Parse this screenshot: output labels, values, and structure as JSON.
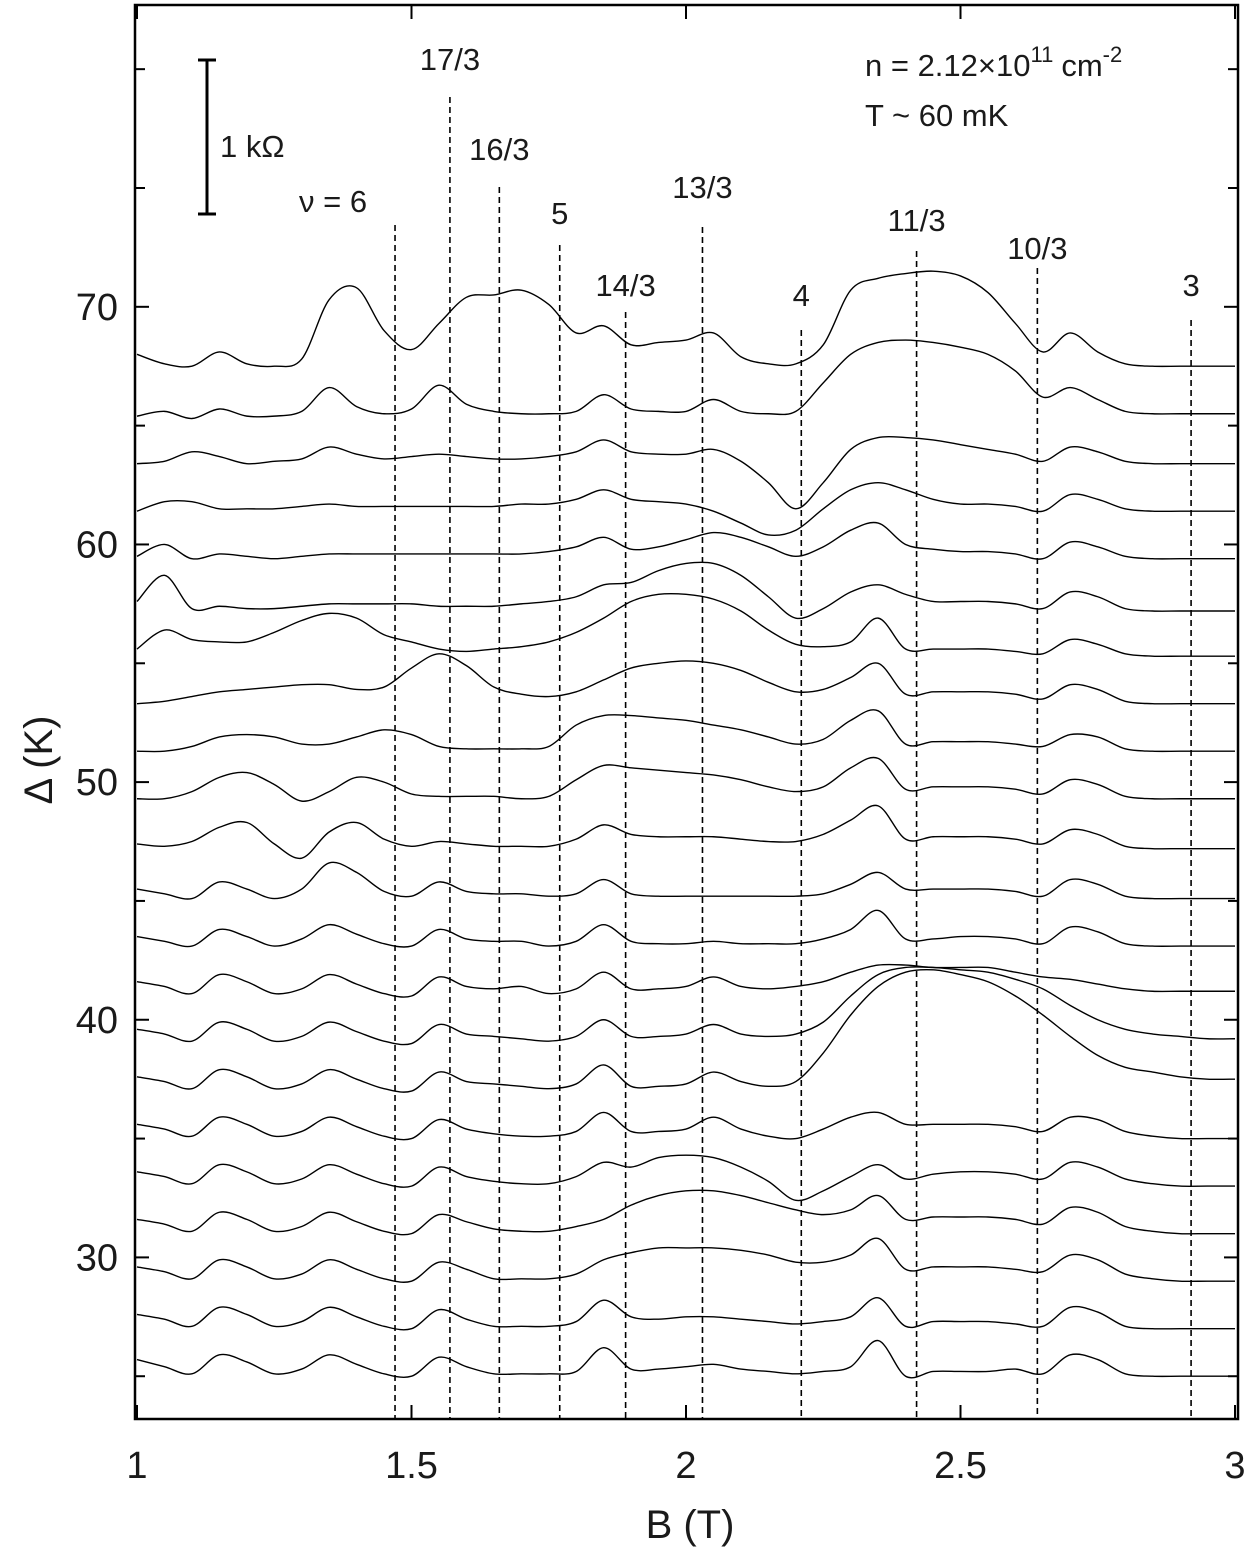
{
  "chart_data": {
    "type": "line",
    "x_label": "B (T)",
    "y_label": "Δ (K)",
    "xlim": [
      1,
      3
    ],
    "ylim": [
      23.2,
      82.7
    ],
    "xticks": [
      1,
      1.5,
      2,
      2.5,
      3
    ],
    "yticks": [
      30,
      40,
      50,
      60,
      70
    ],
    "yminor": [
      25,
      35,
      45,
      55,
      65,
      75,
      80
    ],
    "grid": false,
    "color": "#000000",
    "annotations": {
      "density": {
        "text": "n = 2.12×10",
        "exponent": "11",
        "unit": "cm",
        "unit_exponent": "-2"
      },
      "temperature": "T ~ 60 mK",
      "scale_bar": "1 kΩ"
    },
    "markers": [
      {
        "label": "ν = 6",
        "x": 1.47
      },
      {
        "label": "17/3",
        "x": 1.57
      },
      {
        "label": "16/3",
        "x": 1.66
      },
      {
        "label": "5",
        "x": 1.77
      },
      {
        "label": "14/3",
        "x": 1.89
      },
      {
        "label": "13/3",
        "x": 2.03
      },
      {
        "label": "4",
        "x": 2.21
      },
      {
        "label": "11/3",
        "x": 2.42
      },
      {
        "label": "10/3",
        "x": 2.64
      },
      {
        "label": "3",
        "x": 2.92
      }
    ],
    "x": [
      1.0,
      1.05,
      1.1,
      1.15,
      1.2,
      1.25,
      1.3,
      1.35,
      1.4,
      1.45,
      1.5,
      1.55,
      1.6,
      1.65,
      1.7,
      1.75,
      1.8,
      1.85,
      1.9,
      1.95,
      2.0,
      2.05,
      2.1,
      2.15,
      2.2,
      2.25,
      2.3,
      2.35,
      2.4,
      2.45,
      2.5,
      2.55,
      2.6,
      2.65,
      2.7,
      2.75,
      2.8,
      2.85,
      2.9,
      2.95,
      3.0
    ],
    "series": [
      {
        "values": [
          25.7,
          25.4,
          25.1,
          25.9,
          25.6,
          25.1,
          25.3,
          25.9,
          25.5,
          25.1,
          25,
          25.8,
          25.4,
          25.1,
          25.1,
          25.1,
          25.2,
          26.2,
          25.3,
          25.3,
          25.4,
          25.5,
          25.3,
          25.2,
          25.1,
          25.2,
          25.4,
          26.5,
          25,
          25.2,
          25.2,
          25.2,
          25.3,
          25.1,
          25.9,
          25.7,
          25.1,
          25,
          25,
          25,
          25
        ]
      },
      {
        "values": [
          27.6,
          27.4,
          27.1,
          27.9,
          27.6,
          27.1,
          27.3,
          27.9,
          27.5,
          27.1,
          27,
          27.8,
          27.4,
          27.1,
          27.1,
          27.1,
          27.3,
          28.2,
          27.5,
          27.4,
          27.5,
          27.5,
          27.4,
          27.3,
          27.2,
          27.3,
          27.5,
          28.3,
          27.1,
          27.3,
          27.3,
          27.3,
          27.2,
          27.1,
          27.9,
          27.7,
          27.1,
          27,
          27,
          27,
          27
        ]
      },
      {
        "values": [
          29.6,
          29.4,
          29.1,
          29.9,
          29.6,
          29.1,
          29.3,
          29.9,
          29.5,
          29.1,
          29,
          29.8,
          29.5,
          29.1,
          29.1,
          29.1,
          29.3,
          29.9,
          30.2,
          30.4,
          30.4,
          30.4,
          30.3,
          30.1,
          29.8,
          29.8,
          30.1,
          30.8,
          29.5,
          29.6,
          29.6,
          29.6,
          29.5,
          29.4,
          30.1,
          29.9,
          29.3,
          29.1,
          29,
          29,
          29
        ]
      },
      {
        "values": [
          31.6,
          31.4,
          31.1,
          31.9,
          31.6,
          31.1,
          31.3,
          31.9,
          31.5,
          31.1,
          31,
          31.8,
          31.5,
          31.2,
          31.1,
          31.1,
          31.3,
          31.6,
          32.2,
          32.6,
          32.8,
          32.8,
          32.6,
          32.3,
          32.0,
          31.8,
          32.0,
          32.6,
          31.6,
          31.7,
          31.7,
          31.7,
          31.6,
          31.4,
          32.1,
          31.9,
          31.3,
          31.1,
          31,
          31,
          31
        ]
      },
      {
        "values": [
          33.6,
          33.4,
          33.1,
          33.9,
          33.6,
          33.1,
          33.3,
          33.9,
          33.5,
          33.1,
          33,
          33.8,
          33.4,
          33.2,
          33.1,
          33.1,
          33.4,
          34.0,
          33.8,
          34.2,
          34.3,
          34.2,
          33.8,
          33.2,
          32.4,
          32.8,
          33.4,
          33.9,
          33.3,
          33.5,
          33.6,
          33.6,
          33.5,
          33.3,
          34.0,
          33.8,
          33.3,
          33.1,
          33,
          33,
          33
        ]
      },
      {
        "values": [
          35.6,
          35.4,
          35.1,
          35.9,
          35.6,
          35.1,
          35.3,
          35.9,
          35.5,
          35.1,
          35,
          35.8,
          35.4,
          35.2,
          35.1,
          35.1,
          35.3,
          36.1,
          35.3,
          35.3,
          35.4,
          35.9,
          35.4,
          35.1,
          35.0,
          35.4,
          35.9,
          36.1,
          35.6,
          35.6,
          35.6,
          35.6,
          35.5,
          35.3,
          35.9,
          35.8,
          35.3,
          35.1,
          35,
          35,
          35
        ]
      },
      {
        "values": [
          37.6,
          37.4,
          37.1,
          37.9,
          37.6,
          37.1,
          37.3,
          37.9,
          37.5,
          37.1,
          37,
          37.8,
          37.4,
          37.3,
          37.2,
          37.1,
          37.3,
          38.1,
          37.2,
          37.2,
          37.3,
          37.8,
          37.4,
          37.2,
          37.4,
          38.6,
          40.2,
          41.4,
          42.0,
          42.1,
          41.9,
          41.6,
          41.0,
          40.2,
          39.3,
          38.5,
          38.0,
          37.8,
          37.6,
          37.5,
          37.5
        ]
      },
      {
        "values": [
          39.6,
          39.4,
          39.1,
          39.9,
          39.6,
          39.1,
          39.3,
          39.9,
          39.5,
          39.1,
          39,
          39.8,
          39.4,
          39.3,
          39.2,
          39.1,
          39.3,
          40.0,
          39.3,
          39.3,
          39.4,
          39.8,
          39.4,
          39.3,
          39.4,
          39.9,
          41.0,
          41.9,
          42.2,
          42.2,
          42.1,
          42.0,
          41.7,
          41.3,
          40.6,
          40.0,
          39.6,
          39.4,
          39.3,
          39.2,
          39.2
        ]
      },
      {
        "values": [
          41.6,
          41.4,
          41.1,
          41.9,
          41.6,
          41.1,
          41.3,
          41.9,
          41.5,
          41.1,
          41,
          41.8,
          41.4,
          41.3,
          41.4,
          41.1,
          41.3,
          42.0,
          41.3,
          41.3,
          41.4,
          41.8,
          41.4,
          41.3,
          41.4,
          41.6,
          42.0,
          42.3,
          42.3,
          42.2,
          42.2,
          42.2,
          42.0,
          41.8,
          41.7,
          41.5,
          41.3,
          41.2,
          41.2,
          41.2,
          41.2
        ]
      },
      {
        "values": [
          43.5,
          43.3,
          43.1,
          43.8,
          43.5,
          43.1,
          43.4,
          44.0,
          43.6,
          43.2,
          43.1,
          43.8,
          43.4,
          43.3,
          43.3,
          43.1,
          43.3,
          44.0,
          43.3,
          43.2,
          43.2,
          43.3,
          43.2,
          43.2,
          43.2,
          43.4,
          43.8,
          44.6,
          43.4,
          43.4,
          43.5,
          43.5,
          43.4,
          43.2,
          43.9,
          43.7,
          43.2,
          43.1,
          43.1,
          43.1,
          43.1
        ]
      },
      {
        "values": [
          45.5,
          45.3,
          45.1,
          45.8,
          45.5,
          45.1,
          45.5,
          46.6,
          46.2,
          45.4,
          45.2,
          45.8,
          45.4,
          45.3,
          45.3,
          45.2,
          45.3,
          45.9,
          45.3,
          45.2,
          45.2,
          45.2,
          45.2,
          45.2,
          45.2,
          45.3,
          45.7,
          46.2,
          45.5,
          45.5,
          45.5,
          45.5,
          45.4,
          45.2,
          45.9,
          45.7,
          45.2,
          45.1,
          45.1,
          45.1,
          45.1
        ]
      },
      {
        "values": [
          47.4,
          47.3,
          47.5,
          48.1,
          48.3,
          47.4,
          46.8,
          47.9,
          48.3,
          47.6,
          47.3,
          47.5,
          47.4,
          47.3,
          47.3,
          47.3,
          47.6,
          48.2,
          47.8,
          47.7,
          47.7,
          47.7,
          47.6,
          47.5,
          47.5,
          47.8,
          48.4,
          49.0,
          47.6,
          47.7,
          47.7,
          47.7,
          47.6,
          47.4,
          48.0,
          47.8,
          47.3,
          47.2,
          47.2,
          47.2,
          47.2
        ]
      },
      {
        "values": [
          49.3,
          49.3,
          49.6,
          50.2,
          50.4,
          49.9,
          49.2,
          49.6,
          50.2,
          50.0,
          49.5,
          49.4,
          49.4,
          49.4,
          49.3,
          49.4,
          50.1,
          50.7,
          50.6,
          50.5,
          50.4,
          50.3,
          50.1,
          49.8,
          49.6,
          49.8,
          50.6,
          51.0,
          49.7,
          49.8,
          49.8,
          49.8,
          49.7,
          49.5,
          50.1,
          49.9,
          49.4,
          49.3,
          49.3,
          49.3,
          49.3
        ]
      },
      {
        "values": [
          51.3,
          51.3,
          51.5,
          51.9,
          52.0,
          51.9,
          51.6,
          51.6,
          51.9,
          52.2,
          52.0,
          51.5,
          51.4,
          51.4,
          51.4,
          51.5,
          52.4,
          52.8,
          52.8,
          52.7,
          52.6,
          52.4,
          52.2,
          51.9,
          51.6,
          51.8,
          52.6,
          53.0,
          51.6,
          51.7,
          51.7,
          51.7,
          51.6,
          51.5,
          52.0,
          51.9,
          51.4,
          51.3,
          51.3,
          51.3,
          51.3
        ]
      },
      {
        "values": [
          53.3,
          53.4,
          53.6,
          53.8,
          53.9,
          54.0,
          54.1,
          54.1,
          53.9,
          54.0,
          54.8,
          55.4,
          54.9,
          54.0,
          53.7,
          53.6,
          53.8,
          54.3,
          54.8,
          55.0,
          55.1,
          55.0,
          54.7,
          54.2,
          53.8,
          53.9,
          54.4,
          55.0,
          53.7,
          53.8,
          53.8,
          53.8,
          53.7,
          53.5,
          54.1,
          53.9,
          53.4,
          53.3,
          53.3,
          53.3,
          53.3
        ]
      },
      {
        "values": [
          55.6,
          56.4,
          56.0,
          55.9,
          55.9,
          56.3,
          56.8,
          57.1,
          56.9,
          56.2,
          55.9,
          55.6,
          55.5,
          55.6,
          55.7,
          55.9,
          56.3,
          56.9,
          57.6,
          57.9,
          57.9,
          57.7,
          57.2,
          56.4,
          55.8,
          55.7,
          55.9,
          56.9,
          55.6,
          55.6,
          55.6,
          55.6,
          55.5,
          55.4,
          56.0,
          55.8,
          55.4,
          55.3,
          55.3,
          55.3,
          55.3
        ]
      },
      {
        "values": [
          57.6,
          58.7,
          57.3,
          57.4,
          57.3,
          57.3,
          57.4,
          57.5,
          57.5,
          57.5,
          57.5,
          57.4,
          57.4,
          57.4,
          57.5,
          57.6,
          57.8,
          58.3,
          58.4,
          58.9,
          59.2,
          59.2,
          58.7,
          57.8,
          56.9,
          57.3,
          58.0,
          58.3,
          57.9,
          57.6,
          57.6,
          57.6,
          57.5,
          57.3,
          58.0,
          57.8,
          57.3,
          57.2,
          57.2,
          57.2,
          57.2
        ]
      },
      {
        "values": [
          59.5,
          60.0,
          59.4,
          59.6,
          59.5,
          59.4,
          59.5,
          59.6,
          59.6,
          59.6,
          59.6,
          59.6,
          59.6,
          59.6,
          59.6,
          59.7,
          59.9,
          60.3,
          59.8,
          59.9,
          60.2,
          60.5,
          60.3,
          59.9,
          59.5,
          59.9,
          60.6,
          60.9,
          60.0,
          59.8,
          59.7,
          59.7,
          59.6,
          59.4,
          60.1,
          59.9,
          59.5,
          59.4,
          59.4,
          59.4,
          59.4
        ]
      },
      {
        "values": [
          61.4,
          61.8,
          61.8,
          61.5,
          61.5,
          61.5,
          61.6,
          61.7,
          61.6,
          61.6,
          61.6,
          61.6,
          61.6,
          61.6,
          61.7,
          61.7,
          61.9,
          62.3,
          61.9,
          61.8,
          61.7,
          61.4,
          60.9,
          60.4,
          60.6,
          61.5,
          62.3,
          62.6,
          62.3,
          61.9,
          61.7,
          61.7,
          61.6,
          61.4,
          62.1,
          61.9,
          61.5,
          61.4,
          61.4,
          61.4,
          61.4
        ]
      },
      {
        "values": [
          63.4,
          63.5,
          63.9,
          63.7,
          63.4,
          63.5,
          63.6,
          64.1,
          63.8,
          63.6,
          63.7,
          63.8,
          63.7,
          63.6,
          63.6,
          63.7,
          63.9,
          64.4,
          63.9,
          63.8,
          63.8,
          64.0,
          63.5,
          62.6,
          61.5,
          62.6,
          64.0,
          64.5,
          64.5,
          64.4,
          64.2,
          64.0,
          63.8,
          63.5,
          64.1,
          63.9,
          63.5,
          63.4,
          63.4,
          63.4,
          63.4
        ]
      },
      {
        "values": [
          65.4,
          65.6,
          65.3,
          65.7,
          65.4,
          65.4,
          65.6,
          66.6,
          65.8,
          65.5,
          65.7,
          66.7,
          65.9,
          65.6,
          65.5,
          65.5,
          65.6,
          66.3,
          65.7,
          65.6,
          65.6,
          66.1,
          65.6,
          65.5,
          65.6,
          66.8,
          68.0,
          68.5,
          68.6,
          68.5,
          68.3,
          68.0,
          67.3,
          66.2,
          66.6,
          66.1,
          65.6,
          65.5,
          65.5,
          65.5,
          65.5
        ]
      },
      {
        "values": [
          68.0,
          67.6,
          67.5,
          68.1,
          67.6,
          67.5,
          67.8,
          70.3,
          70.8,
          69.0,
          68.2,
          69.3,
          70.4,
          70.5,
          70.7,
          70.1,
          68.9,
          69.2,
          68.4,
          68.5,
          68.6,
          68.9,
          67.9,
          67.6,
          67.6,
          68.4,
          70.7,
          71.2,
          71.4,
          71.5,
          71.3,
          70.6,
          69.3,
          68.1,
          68.9,
          68.1,
          67.6,
          67.5,
          67.5,
          67.5,
          67.5
        ]
      }
    ]
  }
}
